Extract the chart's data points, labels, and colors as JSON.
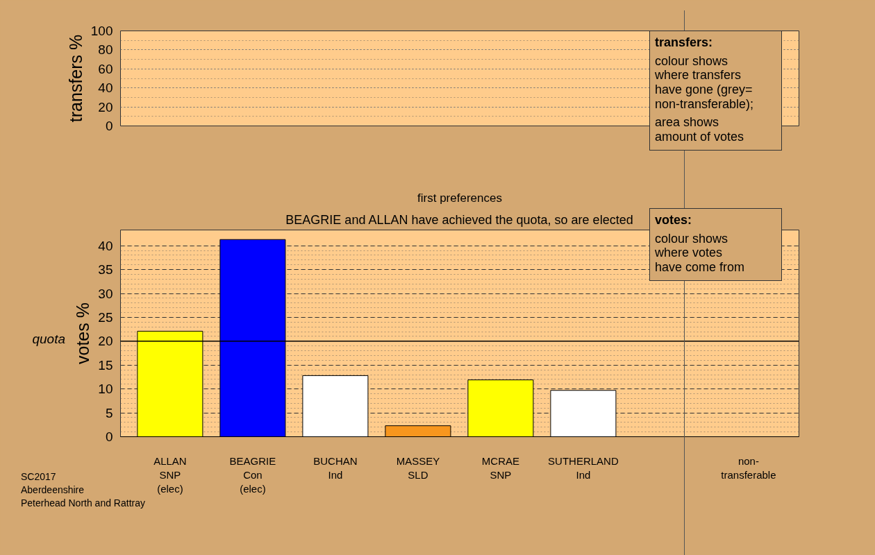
{
  "chart_data": [
    {
      "type": "bar",
      "ylabel": "transfers %",
      "categories": [
        null,
        null,
        null,
        null,
        null,
        null,
        null
      ],
      "values": [
        null,
        null,
        null,
        null,
        null,
        null,
        null
      ],
      "ylim": [
        0,
        100
      ],
      "yticks": [
        0,
        20,
        40,
        60,
        80,
        100
      ],
      "grid": "y",
      "tick_labels": "y",
      "annotations": [
        "transfers:",
        "colour shows\nwhere transfers\nhave gone (grey=\nnon-transferable);",
        "area shows\namount of votes"
      ]
    },
    {
      "type": "bar",
      "title": "first preferences",
      "subtitle": "BEAGRIE and ALLAN have achieved the quota, so are elected",
      "ylabel": "votes %",
      "categories": [
        "ALLAN\nSNP\n(elec)",
        "BEAGRIE\nCon\n(elec)",
        "BUCHAN\nInd",
        "MASSEY\nSLD",
        "MCRAE\nSNP",
        "SUTHERLAND\nInd",
        null,
        "non-\ntransferable"
      ],
      "values": [
        22.1,
        41.3,
        12.8,
        2.3,
        11.9,
        9.7,
        null,
        null
      ],
      "colors": [
        "#ffff00",
        "#0000ff",
        "#ffffff",
        "#f7961e",
        "#ffff00",
        "#ffffff",
        "#999999",
        "#999999"
      ],
      "ylim": [
        0,
        43.3
      ],
      "yticks": [
        0,
        5,
        10,
        15,
        20,
        25,
        30,
        35,
        40
      ],
      "grid": "y",
      "ref_lines": [
        {
          "axis": "y",
          "value": 20,
          "label": "quota"
        }
      ],
      "annotations": [
        "votes:",
        "colour shows\nwhere votes\nhave come from",
        "SC2017\nAberdeenshire\nPeterhead North and Rattray"
      ]
    }
  ]
}
